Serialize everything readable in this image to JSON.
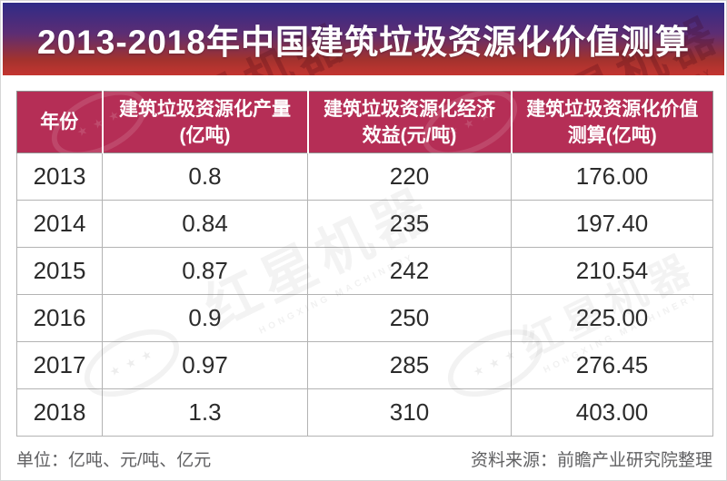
{
  "title": "2013-2018年中国建筑垃圾资源化价值测算",
  "table": {
    "headers": [
      {
        "line1": "年份",
        "line2": ""
      },
      {
        "line1": "建筑垃圾资源化产量",
        "line2": "(亿吨)"
      },
      {
        "line1": "建筑垃圾资源化经济",
        "line2": "效益(元/吨)"
      },
      {
        "line1": "建筑垃圾资源化价值",
        "line2": "测算(亿吨)"
      }
    ],
    "rows": [
      [
        "2013",
        "0.8",
        "220",
        "176.00"
      ],
      [
        "2014",
        "0.84",
        "235",
        "197.40"
      ],
      [
        "2015",
        "0.87",
        "242",
        "210.54"
      ],
      [
        "2016",
        "0.9",
        "250",
        "225.00"
      ],
      [
        "2017",
        "0.97",
        "285",
        "276.45"
      ],
      [
        "2018",
        "1.3",
        "310",
        "403.00"
      ]
    ]
  },
  "footer": {
    "units": "单位：亿吨、元/吨、亿元",
    "source": "资料来源：前瞻产业研究院整理"
  },
  "watermark": {
    "cn": "红星机器",
    "en": "HONGXING MACHINERY",
    "stars": "★ ★ ★"
  },
  "colors": {
    "banner_gradient_top": "#2f2b87",
    "banner_gradient_bottom": "#c43530",
    "header_background": "#b52e56",
    "header_text": "#ffffff",
    "cell_text": "#2b2b2b",
    "footnote_text": "#606062"
  },
  "chart_data": {
    "type": "table",
    "title": "2013-2018年中国建筑垃圾资源化价值测算",
    "columns": [
      "年份",
      "建筑垃圾资源化产量(亿吨)",
      "建筑垃圾资源化经济效益(元/吨)",
      "建筑垃圾资源化价值测算(亿吨)"
    ],
    "rows": [
      [
        "2013",
        0.8,
        220,
        176.0
      ],
      [
        "2014",
        0.84,
        235,
        197.4
      ],
      [
        "2015",
        0.87,
        242,
        210.54
      ],
      [
        "2016",
        0.9,
        250,
        225.0
      ],
      [
        "2017",
        0.97,
        285,
        276.45
      ],
      [
        "2018",
        1.3,
        310,
        403.0
      ]
    ],
    "units_note": "单位：亿吨、元/吨、亿元",
    "source_note": "资料来源：前瞻产业研究院整理"
  }
}
